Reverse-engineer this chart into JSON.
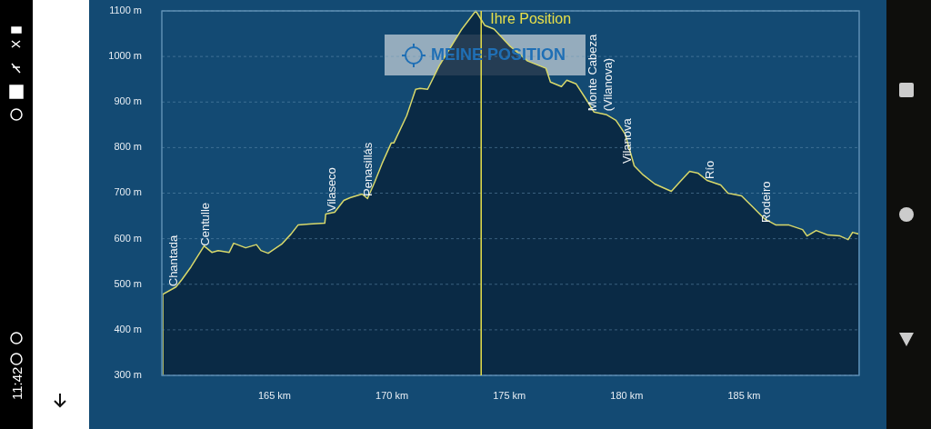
{
  "chart_data": {
    "type": "area",
    "x": [
      160.24,
      160.8,
      161.05,
      161.44,
      162.0,
      162.33,
      162.6,
      163.07,
      163.26,
      163.77,
      164.23,
      164.42,
      164.73,
      165.3,
      165.7,
      166.0,
      166.48,
      167.14,
      167.18,
      167.56,
      167.95,
      168.22,
      168.73,
      168.96,
      169.27,
      169.58,
      169.97,
      170.08,
      170.63,
      171.01,
      171.2,
      171.52,
      172.02,
      172.95,
      173.57,
      173.96,
      174.35,
      175.0,
      175.78,
      176.56,
      176.75,
      177.22,
      177.45,
      177.84,
      178.22,
      178.61,
      179.15,
      179.54,
      179.93,
      180.32,
      180.7,
      181.2,
      181.9,
      182.25,
      182.68,
      183.03,
      183.42,
      184.0,
      184.31,
      184.89,
      185.36,
      185.86,
      186.36,
      186.91,
      187.49,
      187.68,
      188.07,
      188.57,
      189.08,
      189.43,
      189.62,
      189.89
    ],
    "series": [
      {
        "color": "#d8d86a",
        "values": [
          478,
          494,
          510,
          538,
          584,
          570,
          574,
          570,
          590,
          580,
          587,
          574,
          568,
          588,
          610,
          630,
          632,
          634,
          654,
          658,
          684,
          690,
          698,
          688,
          725,
          765,
          810,
          810,
          870,
          928,
          930,
          928,
          980,
          1058,
          1100,
          1068,
          1060,
          1024,
          990,
          974,
          944,
          934,
          948,
          940,
          910,
          878,
          872,
          860,
          830,
          760,
          740,
          720,
          704,
          724,
          748,
          744,
          728,
          718,
          700,
          694,
          670,
          644,
          630,
          630,
          620,
          606,
          618,
          608,
          606,
          598,
          614,
          610
        ]
      }
    ],
    "xlim": [
      160.2,
      189.9
    ],
    "ylim": [
      300,
      1100
    ],
    "xticks": [
      {
        "value": 165,
        "label": "165 km"
      },
      {
        "value": 170,
        "label": "170 km"
      },
      {
        "value": 175,
        "label": "175 km"
      },
      {
        "value": 180,
        "label": "180 km"
      },
      {
        "value": 185,
        "label": "185 km"
      }
    ],
    "yticks": [
      {
        "value": 300,
        "label": "300 m"
      },
      {
        "value": 400,
        "label": "400 m"
      },
      {
        "value": 500,
        "label": "500 m"
      },
      {
        "value": 600,
        "label": "600 m"
      },
      {
        "value": 700,
        "label": "700 m"
      },
      {
        "value": 800,
        "label": "800 m"
      },
      {
        "value": 900,
        "label": "900 m"
      },
      {
        "value": 1000,
        "label": "1000 m"
      },
      {
        "value": 1100,
        "label": "1100 m"
      }
    ],
    "grid": "y",
    "ref_lines": [
      {
        "axis": "x",
        "value": 173.8,
        "label": "Ihre Position",
        "color": "#e8e04a"
      }
    ],
    "annotations": [
      "MEINE POSITION",
      "11:42",
      {
        "text": "Chantada",
        "x": 160.85,
        "y": 495
      },
      {
        "text": "Centulle",
        "x": 162.2,
        "y": 584
      },
      {
        "text": "Vilaseco",
        "x": 167.6,
        "y": 659
      },
      {
        "text": "Penasillás",
        "x": 169.15,
        "y": 693
      },
      {
        "text": "Monte Cabeza\n(Vilanova)",
        "x": 178.7,
        "y": 880
      },
      {
        "text": "Vilanova",
        "x": 180.2,
        "y": 765
      },
      {
        "text": "Río",
        "x": 183.7,
        "y": 731
      },
      {
        "text": "Rodeiro",
        "x": 186.1,
        "y": 635
      }
    ]
  }
}
